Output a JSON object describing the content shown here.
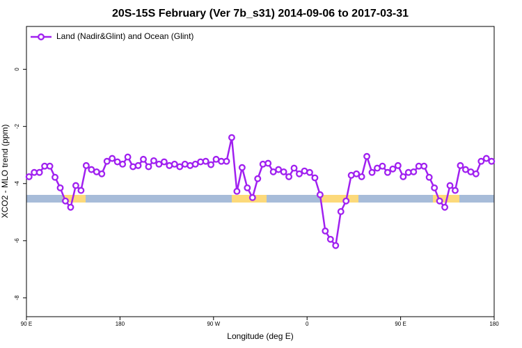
{
  "chart_data": {
    "type": "line",
    "title": "20S-15S February (Ver 7b_s31)   2014-09-06 to 2017-03-31",
    "x_label": "Longitude (deg E)",
    "y_label": "XCO2 - MLO trend (ppm)",
    "x": [
      92.5,
      97.5,
      102.5,
      107.5,
      112.5,
      117.5,
      122.5,
      127.5,
      132.5,
      137.5,
      142.5,
      147.5,
      152.5,
      157.5,
      162.5,
      167.5,
      172.5,
      177.5,
      182.5,
      187.5,
      192.5,
      197.5,
      202.5,
      207.5,
      212.5,
      217.5,
      222.5,
      227.5,
      232.5,
      237.5,
      242.5,
      247.5,
      252.5,
      257.5,
      262.5,
      267.5,
      272.5,
      277.5,
      282.5,
      287.5,
      292.5,
      297.5,
      302.5,
      307.5,
      312.5,
      317.5,
      322.5,
      327.5,
      332.5,
      337.5,
      342.5,
      347.5,
      352.5,
      357.5,
      362.5,
      367.5,
      372.5,
      377.5,
      382.5,
      387.5,
      392.5,
      397.5,
      402.5,
      407.5,
      412.5,
      417.5,
      422.5,
      427.5,
      432.5,
      437.5,
      442.5,
      447.5,
      452.5,
      457.5,
      462.5,
      467.5,
      472.5,
      477.5,
      482.5,
      487.5,
      492.5,
      497.5,
      502.5,
      507.5,
      512.5,
      517.5,
      522.5,
      527.5,
      532.5,
      537.5
    ],
    "series": [
      {
        "name": "Land (Nadir&Glint) and Ocean (Glint)",
        "color": "#a020f0",
        "values": [
          -3.76,
          -3.61,
          -3.61,
          -3.39,
          -3.39,
          -3.78,
          -4.15,
          -4.61,
          -4.83,
          -4.07,
          -4.24,
          -3.37,
          -3.51,
          -3.59,
          -3.66,
          -3.22,
          -3.12,
          -3.24,
          -3.32,
          -3.07,
          -3.41,
          -3.37,
          -3.15,
          -3.41,
          -3.2,
          -3.32,
          -3.24,
          -3.37,
          -3.32,
          -3.41,
          -3.32,
          -3.37,
          -3.32,
          -3.24,
          -3.22,
          -3.34,
          -3.15,
          -3.22,
          -3.22,
          -2.39,
          -4.27,
          -3.44,
          -4.15,
          -4.49,
          -3.83,
          -3.32,
          -3.29,
          -3.59,
          -3.51,
          -3.59,
          -3.76,
          -3.46,
          -3.66,
          -3.56,
          -3.61,
          -3.8,
          -4.39,
          -5.66,
          -5.95,
          -6.17,
          -4.98,
          -4.61,
          -3.71,
          -3.66,
          -3.76,
          -3.05,
          -3.61,
          -3.46,
          -3.39,
          -3.61,
          -3.49,
          -3.37,
          -3.76,
          -3.61,
          -3.59,
          -3.39,
          -3.39,
          -3.78,
          -4.15,
          -4.61,
          -4.83,
          -4.07,
          -4.24,
          -3.37,
          -3.51,
          -3.59,
          -3.66,
          -3.22,
          -3.12,
          -3.22
        ]
      }
    ],
    "xlim": [
      90,
      540
    ],
    "xticks": [
      {
        "value": 90,
        "label": "90 E"
      },
      180,
      {
        "value": 270,
        "label": "90 W"
      },
      {
        "value": 360,
        "label": "0"
      },
      {
        "value": 450,
        "label": "90 E"
      },
      {
        "value": 540,
        "label": "180"
      }
    ],
    "ylim": [
      -8.66,
      1.5
    ],
    "yticks": [
      0,
      -2,
      -4,
      -6,
      -8
    ],
    "legend": "top-left"
  }
}
